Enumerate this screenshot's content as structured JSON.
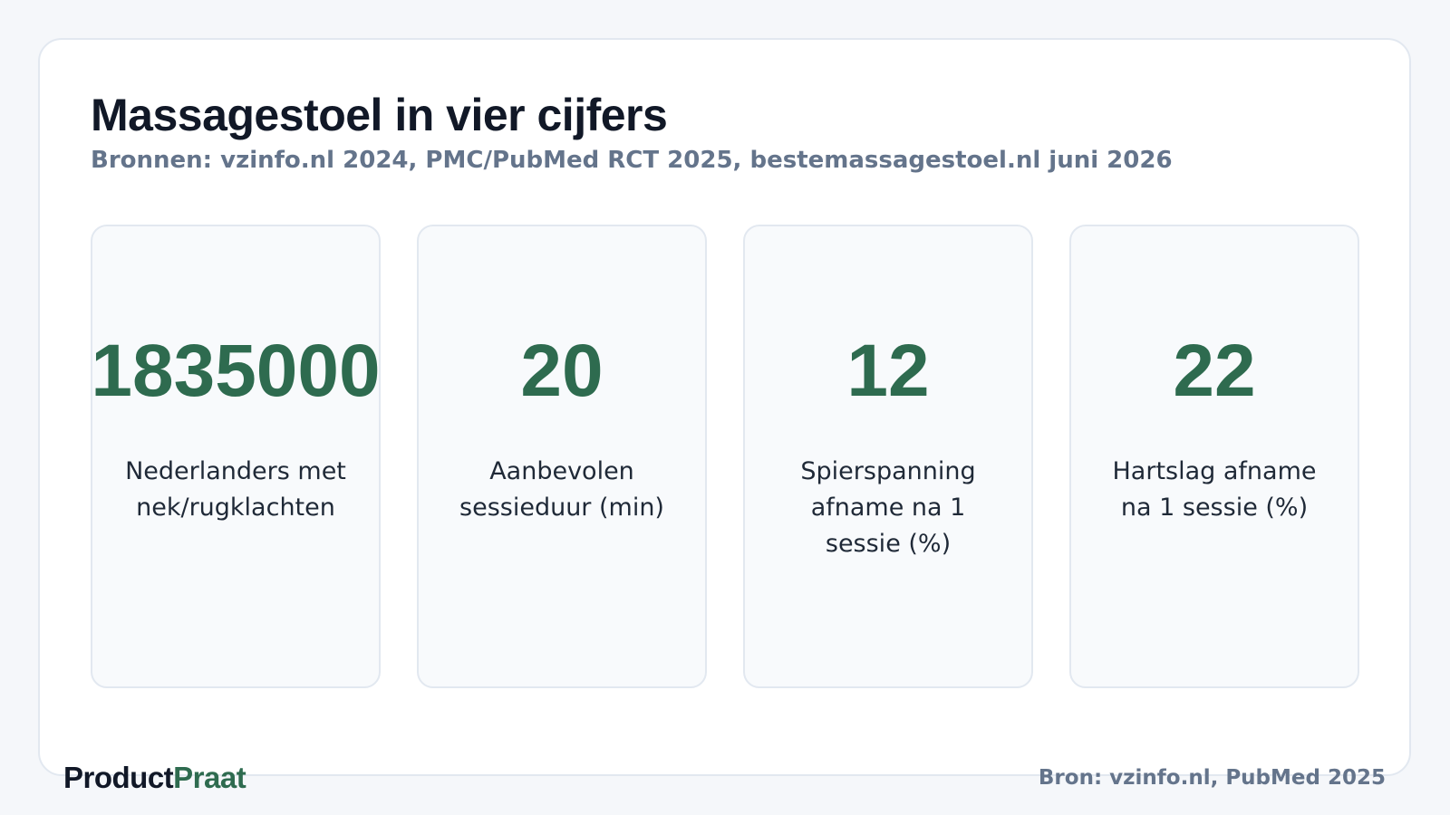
{
  "header": {
    "title": "Massagestoel in vier cijfers",
    "subtitle": "Bronnen: vzinfo.nl 2024, PMC/PubMed RCT 2025, bestemassagestoel.nl juni 2026"
  },
  "cards": [
    {
      "value": 1835000,
      "label": "Nederlanders met nek/rugklachten"
    },
    {
      "value": 20,
      "label": "Aanbevolen sessieduur (min)"
    },
    {
      "value": 12,
      "label": "Spierspanning afname na 1 sessie (%)"
    },
    {
      "value": 22,
      "label": "Hartslag afname na 1 sessie (%)"
    }
  ],
  "footer": {
    "brand": {
      "first": "Product",
      "second": "Praat"
    },
    "source": "Bron: vzinfo.nl, PubMed 2025"
  }
}
